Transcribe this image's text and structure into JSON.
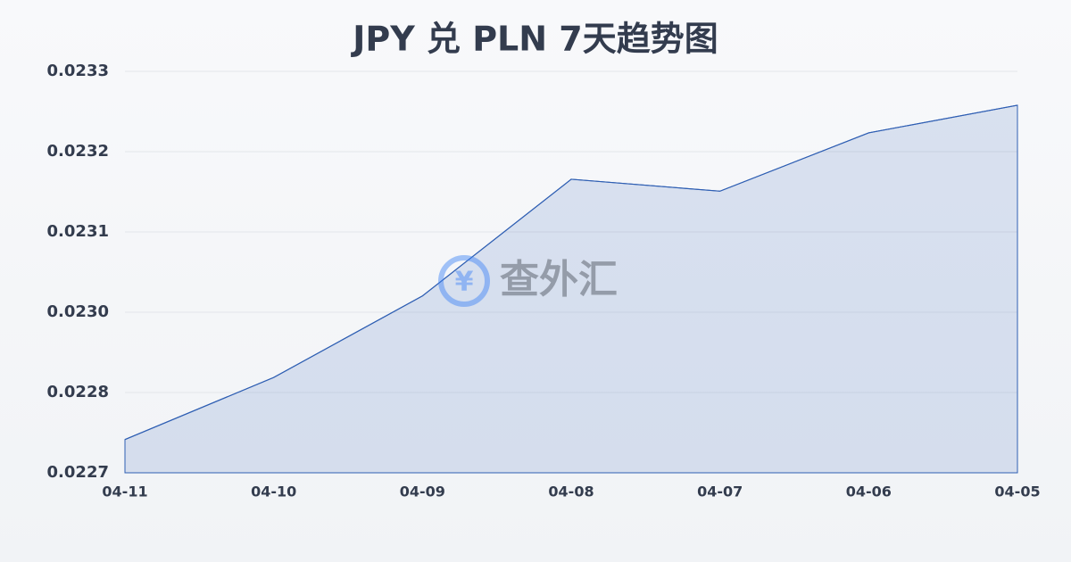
{
  "chart_data": {
    "type": "area",
    "title": "JPY 兑 PLN 7天趋势图",
    "watermark": "查外汇",
    "x": [
      "04-11",
      "04-10",
      "04-09",
      "04-08",
      "04-07",
      "04-06",
      "04-05"
    ],
    "series": [
      {
        "color": "#2f5fb3",
        "values": [
          0.022753,
          0.022852,
          0.022982,
          0.023168,
          0.023149,
          0.023242,
          0.023286
        ]
      }
    ],
    "ylim": [
      0.0227,
      0.02334
    ],
    "yticks": [
      {
        "value": 0.0227,
        "label": "0.0227"
      },
      {
        "value": 0.022828,
        "label": "0.0228"
      },
      {
        "value": 0.022956,
        "label": "0.0230"
      },
      {
        "value": 0.023084,
        "label": "0.0231"
      },
      {
        "value": 0.023212,
        "label": "0.0232"
      },
      {
        "value": 0.02334,
        "label": "0.0233"
      }
    ],
    "grid": true
  }
}
